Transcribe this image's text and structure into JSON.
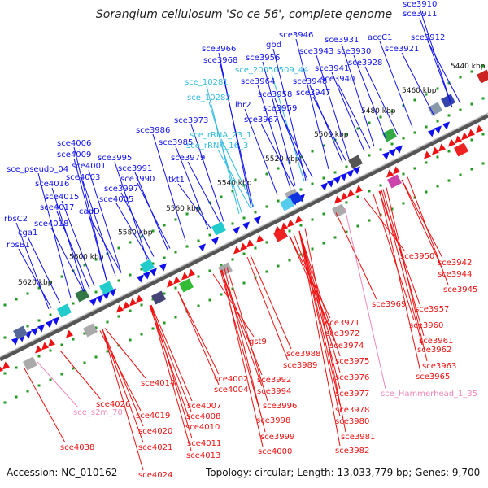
{
  "title": "Sorangium cellulosum 'So ce 56', complete genome",
  "footer": {
    "accession": "Accession: NC_010162",
    "stats": "Topology: circular; Length: 13,033,779 bp; Genes: 9,700"
  },
  "colors": {
    "forward": "#1010ee",
    "reverse": "#ee1111",
    "rna": "#33bbdd",
    "special": "#ee88bb",
    "backbone": "#777777",
    "tick": "#229922"
  },
  "positions": [
    "5440 kbp",
    "5460 kbp",
    "5480 kbp",
    "5500 kbp",
    "5520 kbp",
    "5540 kbp",
    "5560 kbp",
    "5580 kbp",
    "5600 kbp",
    "5620 kbp"
  ],
  "top_labels": [
    "sce3910",
    "sce3911",
    "sce3912",
    "accC1",
    "sce3921",
    "sce3931",
    "sce3930",
    "sce3928",
    "sce3946",
    "gbd",
    "sce3943",
    "sce3966",
    "sce3968",
    "sce3956",
    "sce_20050509_44",
    "sce3941",
    "sce3940",
    "sce_10281",
    "sce3964",
    "sce3948",
    "sce_10282",
    "sce3958",
    "sce3947",
    "lhr2",
    "sce3959",
    "sce3973",
    "sce3967",
    "sce3986",
    "sce_rRNA_23_1",
    "sce3985",
    "sce_rRNA_16_3",
    "sce3979",
    "sce4006",
    "sce4009",
    "sce3995",
    "sce_pseudo_04",
    "sce4001",
    "sce3991",
    "sce4003",
    "sce3990",
    "tkt1",
    "sce4016",
    "sce3997",
    "sce4015",
    "sce4005",
    "sce4017",
    "cadD",
    "rbsC2",
    "sce4018",
    "cga1",
    "rbsB1"
  ],
  "bottom_labels": [
    "sce3950",
    "sce3942",
    "sce3944",
    "sce3945",
    "sce3969",
    "sce3957",
    "sce3960",
    "sce3971",
    "sce3972",
    "sce3961",
    "sce3974",
    "sce3962",
    "sce3988",
    "sce3989",
    "sce3975",
    "sce3963",
    "sce3965",
    "gst9",
    "sce3976",
    "sce3992",
    "sce4014",
    "sce4002",
    "sce3994",
    "sce3977",
    "sce_Hammerhead_1_35",
    "sce4004",
    "sce3996",
    "sce4007",
    "sce3978",
    "sce4026",
    "sce3998",
    "sce4008",
    "sce3980",
    "sce_s2m_70",
    "sce4019",
    "sce4010",
    "sce3981",
    "sce4020",
    "sce3999",
    "sce4000",
    "sce4011",
    "sce3982",
    "sce4013",
    "sce4021",
    "sce4038",
    "sce4024"
  ]
}
